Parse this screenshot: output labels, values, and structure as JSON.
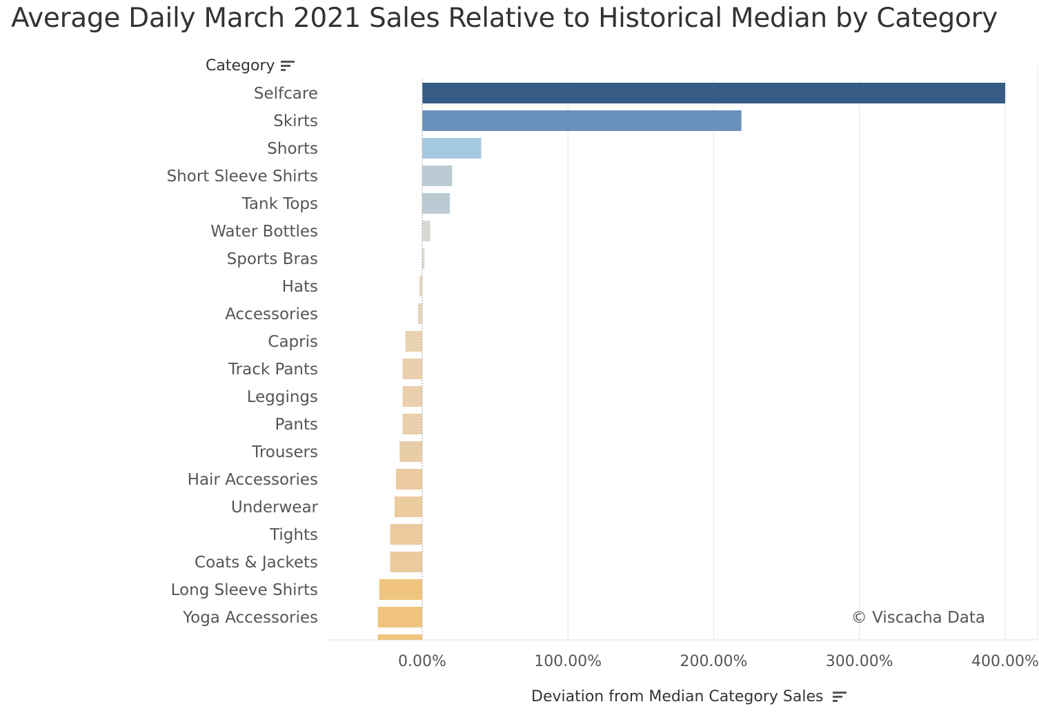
{
  "title": "Average Daily March 2021 Sales Relative to Historical Median by Category",
  "y_header": "Category",
  "x_title": "Deviation from Median Category Sales",
  "watermark": "© Viscacha Data",
  "icons": {
    "sort": "sort-descending-icon"
  },
  "colors": {
    "positive_strong": "#355c87",
    "negative_strong": "#f0c47e",
    "grid": "#ececec",
    "text": "#555555"
  },
  "chart_data": {
    "type": "bar",
    "orientation": "horizontal",
    "xlabel": "Deviation from Median Category Sales",
    "ylabel": "Category",
    "xlim": [
      -66,
      420
    ],
    "xticks": [
      0,
      100,
      200,
      300,
      400
    ],
    "xtick_labels": [
      "0.00%",
      "100.00%",
      "200.00%",
      "300.00%",
      "400.00%"
    ],
    "grid": true,
    "categories": [
      "Selfcare",
      "Skirts",
      "Shorts",
      "Short Sleeve Shirts",
      "Tank Tops",
      "Water Bottles",
      "Sports Bras",
      "Hats",
      "Accessories",
      "Capris",
      "Track Pants",
      "Leggings",
      "Pants",
      "Trousers",
      "Hair Accessories",
      "Underwear",
      "Tights",
      "Coats & Jackets",
      "Long Sleeve Shirts",
      "Yoga Accessories",
      ""
    ],
    "values": [
      400,
      219,
      40.5,
      20.5,
      19,
      5.5,
      1.5,
      -2,
      -3,
      -11.5,
      -13.5,
      -13.5,
      -13.5,
      -15.5,
      -18,
      -19,
      -22,
      -22,
      -29.5,
      -30.5,
      -30.5
    ],
    "colors": [
      "#365c85",
      "#6892bc",
      "#a5c9e1",
      "#bacbd4",
      "#bccbd3",
      "#d8d8d0",
      "#ddd8cd",
      "#e7d7c1",
      "#e7d6c0",
      "#e9d2b0",
      "#e9cfab",
      "#e9cfab",
      "#e9cfab",
      "#e9cda8",
      "#eccba0",
      "#eccb9f",
      "#ecca9d",
      "#ecca9d",
      "#f0c47e",
      "#f0c47e",
      "#f0c47e"
    ]
  }
}
